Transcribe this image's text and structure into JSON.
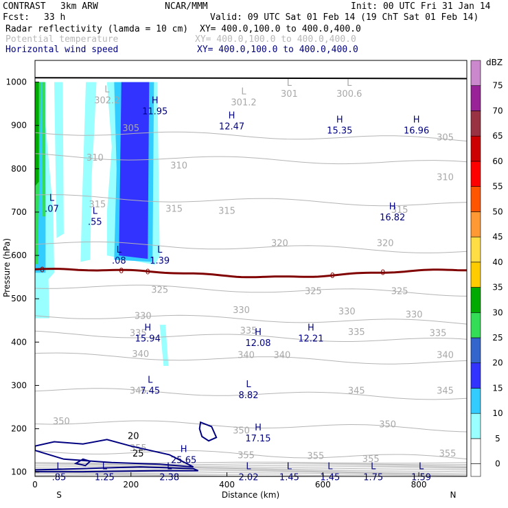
{
  "header": {
    "model": "CONTRAST",
    "config": "3km ARW",
    "org": "NCAR/MMM",
    "init": "Init: 00 UTC Fri 31 Jan 14",
    "fcst_label": "Fcst:",
    "fcst_value": "33 h",
    "valid": "Valid: 09 UTC Sat 01 Feb 14 (19 ChT Sat 01 Feb 14)"
  },
  "fields": [
    {
      "name": "Radar reflectivity (lamda = 10 cm)",
      "xy": "XY= 400.0,100.0 to 400.0,400.0",
      "color": "#000000"
    },
    {
      "name": "Potential temperature",
      "xy": "XY= 400.0,100.0 to 400.0,400.0",
      "color": "#b8b8b8"
    },
    {
      "name": "Horizontal wind speed",
      "xy": "XY= 400.0,100.0 to 400.0,400.0",
      "color": "#000080"
    }
  ],
  "chart_data": {
    "type": "cross-section",
    "xlabel": "Distance (km)",
    "ylabel": "Pressure (hPa)",
    "x_range": [
      0,
      900
    ],
    "y_range": [
      1050,
      90
    ],
    "x_ticks": [
      0,
      200,
      400,
      600,
      800
    ],
    "y_ticks": [
      100,
      200,
      300,
      400,
      500,
      600,
      700,
      800,
      900,
      1000
    ],
    "direction_left": "S",
    "direction_right": "N",
    "colorbar": {
      "unit": "dBZ",
      "levels": [
        0,
        5,
        10,
        15,
        20,
        25,
        30,
        35,
        40,
        45,
        50,
        55,
        60,
        65,
        70,
        75
      ],
      "colors": [
        "#ffffff",
        "#99ffff",
        "#33ccff",
        "#3333ff",
        "#3366cc",
        "#33dd55",
        "#00aa00",
        "#ffcc00",
        "#ffdd44",
        "#ff9933",
        "#ff5500",
        "#ff0000",
        "#cc0000",
        "#993344",
        "#992299",
        "#cc88cc"
      ]
    },
    "theta_contours": [
      {
        "value": 305,
        "p0": 885,
        "labels": [
          {
            "x": 200,
            "p": 893
          },
          {
            "x": 855,
            "p": 872
          }
        ]
      },
      {
        "value": 310,
        "p0": 830,
        "labels": [
          {
            "x": 125,
            "p": 825
          },
          {
            "x": 300,
            "p": 807
          },
          {
            "x": 855,
            "p": 780
          }
        ]
      },
      {
        "value": 315,
        "p0": 735,
        "labels": [
          {
            "x": 130,
            "p": 717
          },
          {
            "x": 290,
            "p": 707
          },
          {
            "x": 400,
            "p": 702
          },
          {
            "x": 760,
            "p": 705
          }
        ]
      },
      {
        "value": 320,
        "p0": 628,
        "labels": [
          {
            "x": 510,
            "p": 628
          },
          {
            "x": 730,
            "p": 628
          }
        ]
      },
      {
        "value": 325,
        "p0": 530,
        "labels": [
          {
            "x": 260,
            "p": 520
          },
          {
            "x": 580,
            "p": 517
          },
          {
            "x": 760,
            "p": 517
          }
        ]
      },
      {
        "value": 330,
        "p0": 462,
        "labels": [
          {
            "x": 225,
            "p": 460
          },
          {
            "x": 430,
            "p": 473
          },
          {
            "x": 650,
            "p": 470
          },
          {
            "x": 790,
            "p": 463
          }
        ]
      },
      {
        "value": 335,
        "p0": 420,
        "labels": [
          {
            "x": 215,
            "p": 420
          },
          {
            "x": 445,
            "p": 426
          },
          {
            "x": 670,
            "p": 423
          },
          {
            "x": 840,
            "p": 420
          }
        ]
      },
      {
        "value": 340,
        "p0": 370,
        "labels": [
          {
            "x": 220,
            "p": 372
          },
          {
            "x": 440,
            "p": 370
          },
          {
            "x": 515,
            "p": 370
          },
          {
            "x": 855,
            "p": 370
          }
        ]
      },
      {
        "value": 345,
        "p0": 290,
        "labels": [
          {
            "x": 215,
            "p": 287
          },
          {
            "x": 670,
            "p": 287
          },
          {
            "x": 855,
            "p": 287
          }
        ]
      },
      {
        "value": 350,
        "p0": 217,
        "labels": [
          {
            "x": 55,
            "p": 217
          },
          {
            "x": 430,
            "p": 195
          },
          {
            "x": 735,
            "p": 210
          }
        ]
      },
      {
        "value": 355,
        "p0": 150,
        "labels": [
          {
            "x": 215,
            "p": 155
          },
          {
            "x": 440,
            "p": 138
          },
          {
            "x": 585,
            "p": 137
          },
          {
            "x": 700,
            "p": 130
          },
          {
            "x": 860,
            "p": 142
          }
        ]
      }
    ],
    "zero_contour_label": "0",
    "wind_contour_labels": [
      "25",
      "20"
    ],
    "extrema": [
      {
        "type": "L",
        "value": ".85",
        "x": 50,
        "p": 100,
        "color": "blue"
      },
      {
        "type": "L",
        "value": "1.25",
        "x": 145,
        "p": 100,
        "color": "blue"
      },
      {
        "type": "L",
        "value": "2.38",
        "x": 280,
        "p": 100,
        "color": "blue"
      },
      {
        "type": "L",
        "value": "2.02",
        "x": 445,
        "p": 100,
        "color": "blue"
      },
      {
        "type": "L",
        "value": "1.45",
        "x": 530,
        "p": 100,
        "color": "blue"
      },
      {
        "type": "L",
        "value": "1.45",
        "x": 615,
        "p": 100,
        "color": "blue"
      },
      {
        "type": "L",
        "value": "1.75",
        "x": 705,
        "p": 100,
        "color": "blue"
      },
      {
        "type": "L",
        "value": "1.59",
        "x": 805,
        "p": 100,
        "color": "blue"
      },
      {
        "type": "H",
        "value": "25.65",
        "x": 310,
        "p": 140,
        "color": "blue"
      },
      {
        "type": "H",
        "value": "17.15",
        "x": 465,
        "p": 190,
        "color": "blue"
      },
      {
        "type": "L",
        "value": "7.45",
        "x": 240,
        "p": 300,
        "color": "blue"
      },
      {
        "type": "L",
        "value": "8.82",
        "x": 445,
        "p": 290,
        "color": "blue"
      },
      {
        "type": "H",
        "value": "15.94",
        "x": 235,
        "p": 420,
        "color": "blue"
      },
      {
        "type": "H",
        "value": "12.08",
        "x": 465,
        "p": 410,
        "color": "blue"
      },
      {
        "type": "H",
        "value": "12.21",
        "x": 575,
        "p": 420,
        "color": "blue"
      },
      {
        "type": "L",
        "value": ".08",
        "x": 175,
        "p": 600,
        "color": "blue"
      },
      {
        "type": "L",
        "value": "1.39",
        "x": 260,
        "p": 600,
        "color": "blue"
      },
      {
        "type": "L",
        "value": ".55",
        "x": 125,
        "p": 690,
        "color": "blue"
      },
      {
        "type": "L",
        "value": ".07",
        "x": 35,
        "p": 720,
        "color": "blue"
      },
      {
        "type": "H",
        "value": "16.82",
        "x": 745,
        "p": 700,
        "color": "blue"
      },
      {
        "type": "H",
        "value": "15.35",
        "x": 635,
        "p": 900,
        "color": "blue"
      },
      {
        "type": "H",
        "value": "16.96",
        "x": 795,
        "p": 900,
        "color": "blue"
      },
      {
        "type": "H",
        "value": "12.47",
        "x": 410,
        "p": 910,
        "color": "blue"
      },
      {
        "type": "H",
        "value": "11.95",
        "x": 250,
        "p": 945,
        "color": "blue"
      },
      {
        "type": "L",
        "value": "302.2",
        "x": 150,
        "p": 970,
        "color": "gray"
      },
      {
        "type": "L",
        "value": "301.2",
        "x": 435,
        "p": 965,
        "color": "gray"
      },
      {
        "type": "L",
        "value": "301",
        "x": 530,
        "p": 985,
        "color": "gray"
      },
      {
        "type": "L",
        "value": "300.6",
        "x": 655,
        "p": 985,
        "color": "gray"
      }
    ]
  }
}
